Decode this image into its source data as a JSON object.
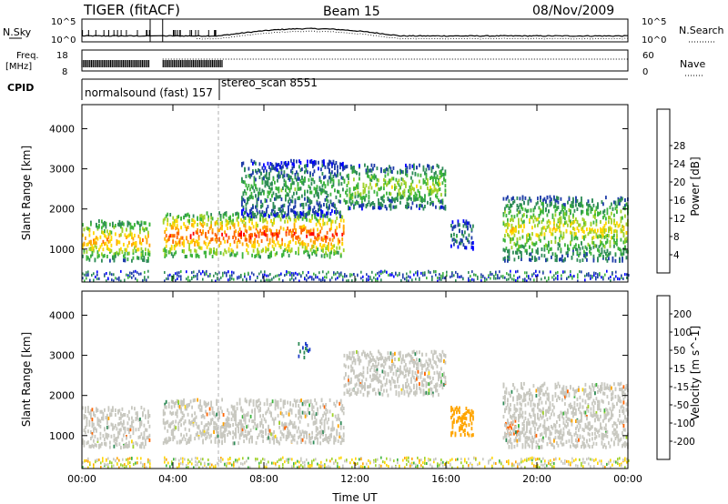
{
  "header": {
    "title": "TIGER (fitACF)",
    "beam": "Beam 15",
    "date": "08/Nov/2009"
  },
  "top_panels": {
    "nsky": {
      "label": "N.Sky",
      "right_label": "N.Search",
      "tick_top": "10^5",
      "tick_bottom": "10^0",
      "right_tick_top": "10^5",
      "right_tick_bottom": "10^0"
    },
    "freq": {
      "label_line1": "Freq.",
      "label_line2": "[MHz]",
      "tick_top": "18",
      "tick_bottom": "8",
      "right_label": "Nave",
      "right_tick_top": "60",
      "right_tick_bottom": "0"
    },
    "cpid": {
      "label": "CPID",
      "modes": [
        {
          "text": "normalsound (fast) 157",
          "start_hour": 0.0
        },
        {
          "text": "stereo_scan 8551",
          "start_hour": 6.0
        }
      ]
    }
  },
  "chart_data": [
    {
      "type": "heatmap",
      "title": "",
      "quantity": "Power",
      "xlabel": "",
      "ylabel": "Slant Range [km]",
      "xlim": [
        0,
        24
      ],
      "ylim": [
        180,
        4600
      ],
      "y_ticks": [
        "1000",
        "2000",
        "3000",
        "4000"
      ],
      "colorbar": {
        "label": "Power [dB]",
        "ticks": [
          "4",
          "8",
          "12",
          "16",
          "20",
          "24",
          "28"
        ],
        "range": [
          0,
          30
        ],
        "colors": [
          "#0000ff",
          "#1e3ca8",
          "#2e8b57",
          "#3cb43c",
          "#a0d22a",
          "#ffd700",
          "#ffa500",
          "#ff6400",
          "#ff0000"
        ]
      },
      "data_gap_hours": [
        3.0,
        3.55
      ],
      "echo_regions": [
        {
          "t_start": 0.0,
          "t_end": 3.0,
          "range_km": [
            700,
            1700
          ],
          "level_db": 22
        },
        {
          "t_start": 3.55,
          "t_end": 11.5,
          "range_km": [
            800,
            1900
          ],
          "level_db": 26
        },
        {
          "t_start": 7.0,
          "t_end": 11.5,
          "range_km": [
            1800,
            3200
          ],
          "level_db": 12
        },
        {
          "t_start": 11.5,
          "t_end": 16.0,
          "range_km": [
            2000,
            3100
          ],
          "level_db": 16
        },
        {
          "t_start": 16.2,
          "t_end": 17.2,
          "range_km": [
            1000,
            1700
          ],
          "level_db": 10
        },
        {
          "t_start": 18.5,
          "t_end": 24.0,
          "range_km": [
            700,
            2300
          ],
          "level_db": 18
        }
      ]
    },
    {
      "type": "heatmap",
      "title": "",
      "quantity": "Velocity",
      "xlabel": "Time UT",
      "ylabel": "Slant Range [km]",
      "xlim": [
        0,
        24
      ],
      "ylim": [
        180,
        4600
      ],
      "x_ticks": [
        "00:00",
        "04:00",
        "08:00",
        "12:00",
        "16:00",
        "20:00",
        "00:00"
      ],
      "y_ticks": [
        "1000",
        "2000",
        "3000",
        "4000"
      ],
      "colorbar": {
        "label": "Velocity [m s^-1]",
        "ticks": [
          "200",
          "100",
          "50",
          "15",
          "-15",
          "-50",
          "-100",
          "-200"
        ],
        "colors": [
          "#1e3cc8",
          "#2e8b57",
          "#3cb43c",
          "#a0d22a",
          "#c8c8c0",
          "#ffd700",
          "#ffa500",
          "#ff6400",
          "#ff0000"
        ]
      },
      "data_gap_hours": [
        3.0,
        3.55
      ],
      "echo_regions": [
        {
          "t_start": 0.0,
          "t_end": 3.0,
          "range_km": [
            700,
            1700
          ],
          "velocity": 0
        },
        {
          "t_start": 3.55,
          "t_end": 11.5,
          "range_km": [
            800,
            1900
          ],
          "velocity": 0
        },
        {
          "t_start": 11.5,
          "t_end": 16.0,
          "range_km": [
            2000,
            3100
          ],
          "velocity": 0
        },
        {
          "t_start": 9.5,
          "t_end": 10.0,
          "range_km": [
            2900,
            3300
          ],
          "velocity": 150
        },
        {
          "t_start": 16.2,
          "t_end": 17.2,
          "range_km": [
            1000,
            1700
          ],
          "velocity": -60
        },
        {
          "t_start": 18.6,
          "t_end": 19.2,
          "range_km": [
            1000,
            1400
          ],
          "velocity": -120
        },
        {
          "t_start": 18.5,
          "t_end": 24.0,
          "range_km": [
            700,
            2300
          ],
          "velocity": 0
        }
      ]
    }
  ]
}
